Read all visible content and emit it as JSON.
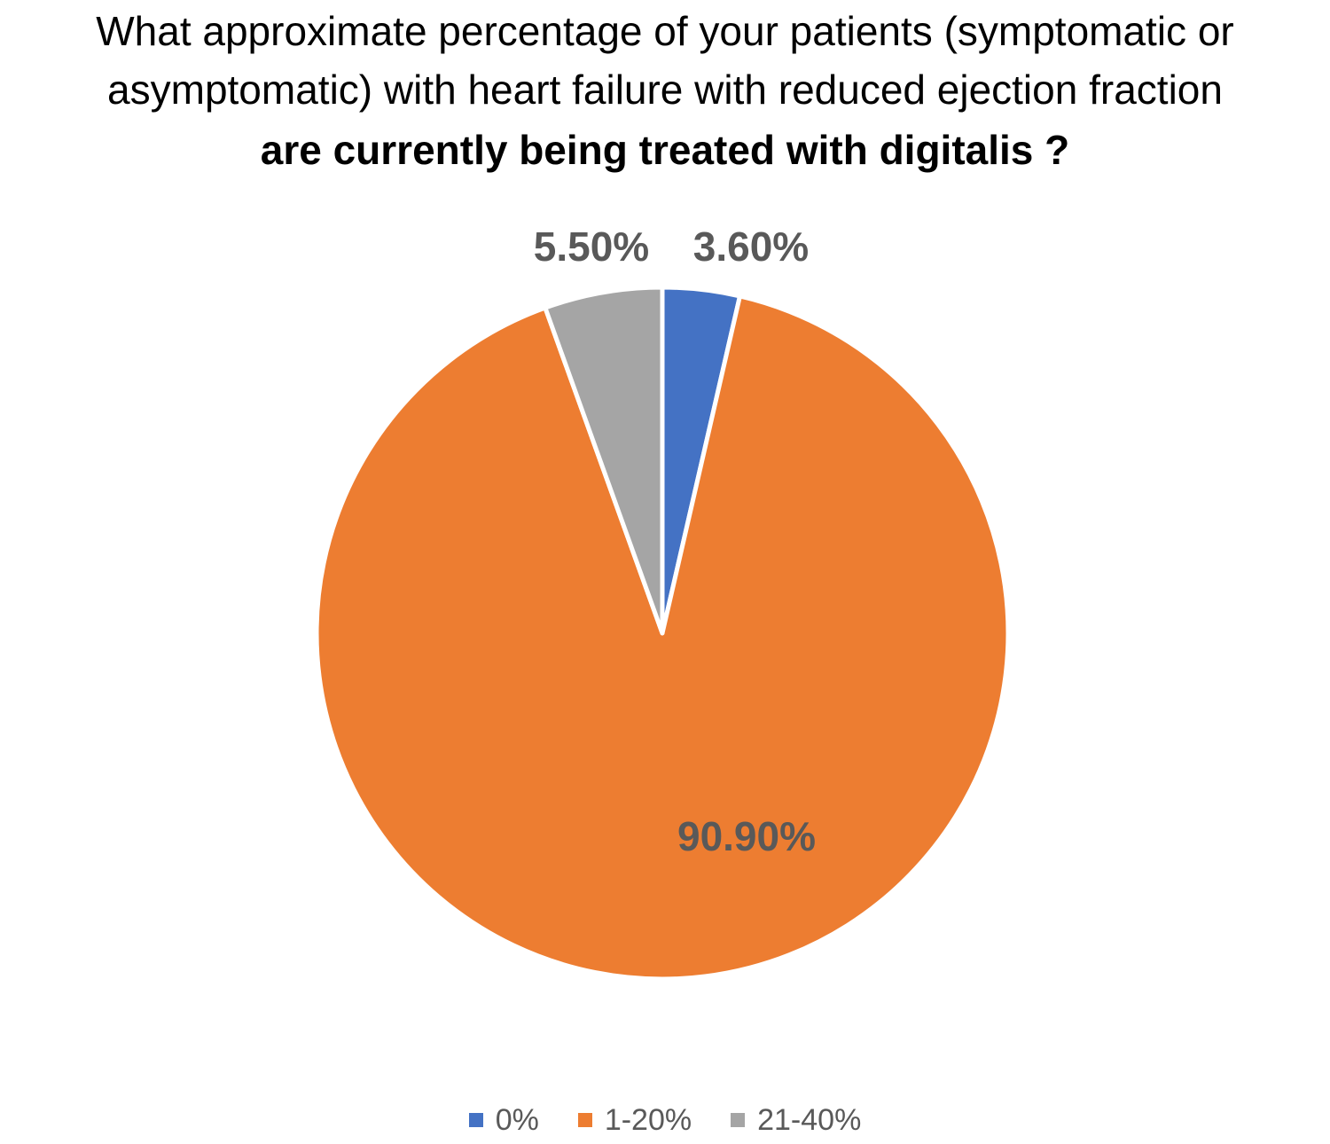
{
  "chart_data": {
    "type": "pie",
    "title": "What approximate percentage of your patients (symptomatic or asymptomatic) with heart failure with reduced ejection fraction are currently being treated with digitalis ?",
    "title_lines": [
      "What approximate percentage of your patients (symptomatic or",
      "asymptomatic) with heart failure with reduced ejection fraction",
      "are currently being treated with digitalis ?"
    ],
    "categories": [
      "0%",
      "1-20%",
      "21-40%"
    ],
    "values": [
      3.6,
      90.9,
      5.5
    ],
    "data_labels": [
      "3.60%",
      "90.90%",
      "5.50%"
    ],
    "colors": [
      "#4472C4",
      "#ED7D31",
      "#A5A5A5"
    ],
    "legend_position": "bottom"
  }
}
